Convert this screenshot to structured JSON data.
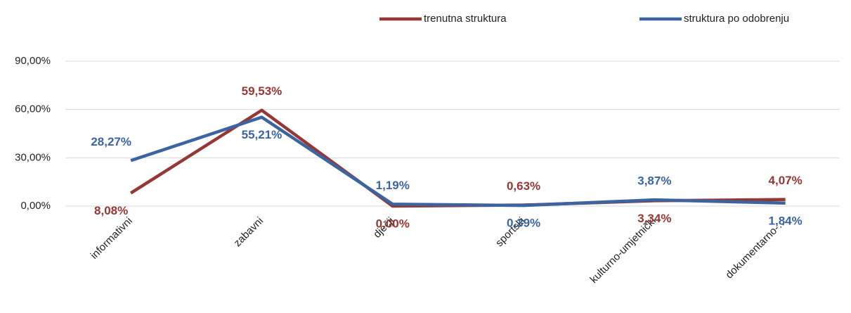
{
  "chart_data": {
    "type": "line",
    "categories": [
      "informativni",
      "zabavni",
      "dječji",
      "sportski",
      "kulturno-umjetnički",
      "dokumentarno-…"
    ],
    "series": [
      {
        "name": "trenutna struktura",
        "color": "#953735",
        "values": [
          8.08,
          59.53,
          0.0,
          0.63,
          3.34,
          4.07
        ],
        "value_labels": [
          "8,08%",
          "59,53%",
          "0,00%",
          "0,63%",
          "3,34%",
          "4,07%"
        ]
      },
      {
        "name": "struktura po odobrenju",
        "color": "#3c64a0",
        "values": [
          28.27,
          55.21,
          1.19,
          0.39,
          3.87,
          1.84
        ],
        "value_labels": [
          "28,27%",
          "55,21%",
          "1,19%",
          "0,39%",
          "3,87%",
          "1,84%"
        ]
      }
    ],
    "ylim": [
      0,
      90
    ],
    "yticks": [
      {
        "value": 0,
        "label": "0,00%"
      },
      {
        "value": 30,
        "label": "30,00%"
      },
      {
        "value": 60,
        "label": "60,00%"
      },
      {
        "value": 90,
        "label": "90,00%"
      }
    ],
    "grid": true,
    "legend": "top"
  }
}
